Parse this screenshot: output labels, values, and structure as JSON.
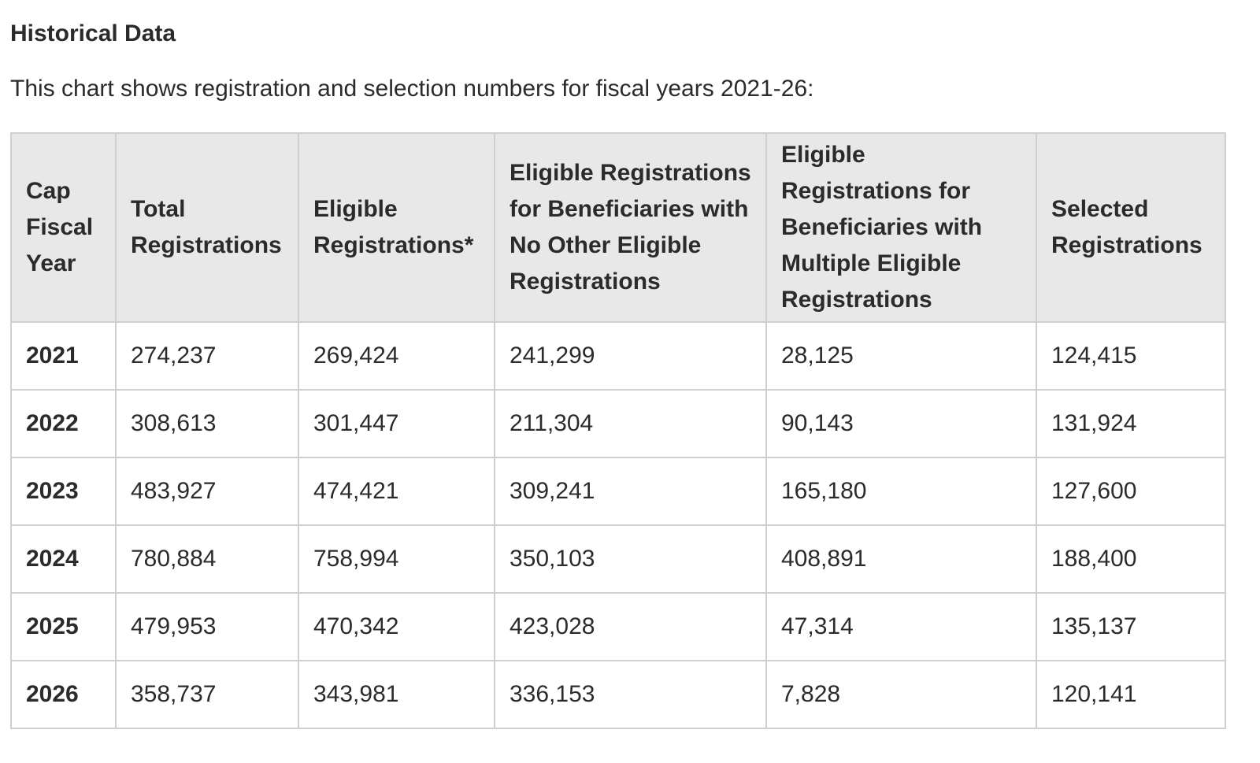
{
  "heading": "Historical Data",
  "intro": "This chart shows registration and selection numbers for fiscal years 2021-26:",
  "table": {
    "headers": [
      "Cap Fiscal Year",
      "Total Registrations",
      "Eligible Registrations*",
      "Eligible Registrations for Beneficiaries with No Other Eligible Registrations",
      "Eligible Registrations for Beneficiaries with Multiple Eligible Registrations",
      "Selected Registrations"
    ],
    "rows": [
      [
        "2021",
        "274,237",
        "269,424",
        "241,299",
        "28,125",
        "124,415"
      ],
      [
        "2022",
        "308,613",
        "301,447",
        "211,304",
        "90,143",
        "131,924"
      ],
      [
        "2023",
        "483,927",
        "474,421",
        "309,241",
        "165,180",
        "127,600"
      ],
      [
        "2024",
        "780,884",
        "758,994",
        "350,103",
        "408,891",
        "188,400"
      ],
      [
        "2025",
        "479,953",
        "470,342",
        "423,028",
        "47,314",
        "135,137"
      ],
      [
        "2026",
        "358,737",
        "343,981",
        "336,153",
        "7,828",
        "120,141"
      ]
    ]
  }
}
